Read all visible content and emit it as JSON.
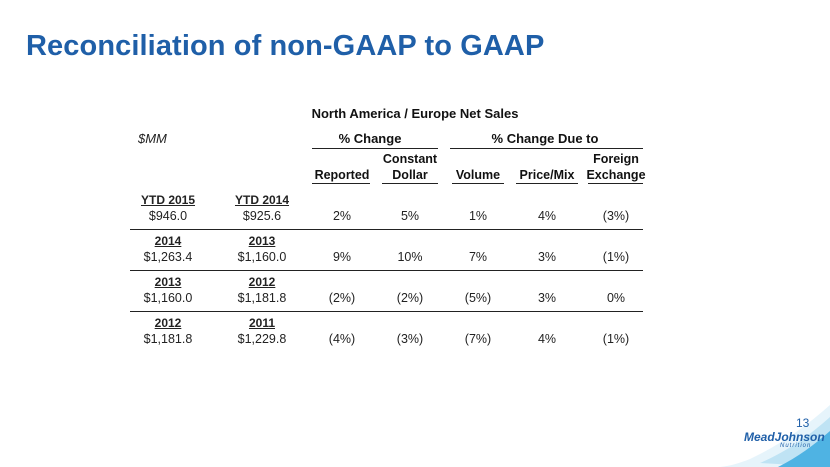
{
  "title": "Reconciliation of non-GAAP to GAAP",
  "table_title": "North America /  Europe Net Sales",
  "unit_label": "$MM",
  "group_headers": {
    "change": "% Change",
    "change_due": "% Change Due to"
  },
  "col_headers": {
    "reported": "Reported",
    "constant_l1": "Constant",
    "constant_l2": "Dollar",
    "volume": "Volume",
    "price_mix": "Price/Mix",
    "fx_l1": "Foreign",
    "fx_l2": "Exchange"
  },
  "rows": [
    {
      "label_a": "YTD 2015",
      "label_b": "YTD 2014",
      "val_a": "$946.0",
      "val_b": "$925.6",
      "reported": "2%",
      "constant": "5%",
      "volume": "1%",
      "price_mix": "4%",
      "fx": "(3%)"
    },
    {
      "label_a": "2014",
      "label_b": "2013",
      "val_a": "$1,263.4",
      "val_b": "$1,160.0",
      "reported": "9%",
      "constant": "10%",
      "volume": "7%",
      "price_mix": "3%",
      "fx": "(1%)"
    },
    {
      "label_a": "2013",
      "label_b": "2012",
      "val_a": "$1,160.0",
      "val_b": "$1,181.8",
      "reported": "(2%)",
      "constant": "(2%)",
      "volume": "(5%)",
      "price_mix": "3%",
      "fx": "0%"
    },
    {
      "label_a": "2012",
      "label_b": "2011",
      "val_a": "$1,181.8",
      "val_b": "$1,229.8",
      "reported": "(4%)",
      "constant": "(3%)",
      "volume": "(7%)",
      "price_mix": "4%",
      "fx": "(1%)"
    }
  ],
  "page_number": "13",
  "logo": {
    "name": "MeadJohnson",
    "sub": "Nutrition"
  },
  "colors": {
    "title": "#1f5fa8",
    "swoosh": "#4fb3e3"
  }
}
